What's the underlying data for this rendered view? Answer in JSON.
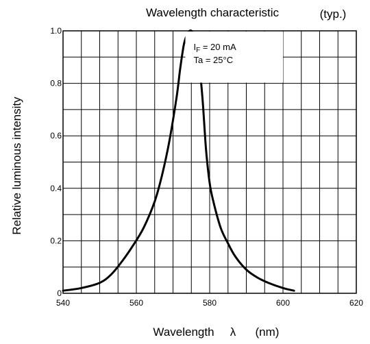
{
  "chart_data": {
    "type": "line",
    "title": "Wavelength characteristic",
    "subtitle": "(typ.)",
    "xlabel": "Wavelength",
    "xlabel_symbol": "λ",
    "xlabel_unit": "(nm)",
    "ylabel": "Relative luminous intensity",
    "xlim": [
      540,
      620
    ],
    "ylim": [
      0,
      1.0
    ],
    "xticks": [
      540,
      560,
      580,
      600,
      620
    ],
    "xtick_labels": [
      "540",
      "560",
      "580",
      "600",
      "620"
    ],
    "yticks": [
      0,
      0.2,
      0.4,
      0.6,
      0.8,
      1.0
    ],
    "ytick_labels": [
      "0",
      "0.2",
      "0.4",
      "0.6",
      "0.8",
      "1.0"
    ],
    "grid": true,
    "conditions": {
      "line1_main": "I",
      "line1_sub": "F",
      "line1_rest": " = 20 mA",
      "line2": "Ta = 25°C"
    },
    "series": [
      {
        "x": [
          540,
          545,
          550,
          553,
          556,
          559,
          562,
          565,
          567,
          569,
          571,
          572,
          573,
          574,
          575,
          576,
          577,
          578,
          579,
          580,
          581,
          583,
          585,
          587,
          590,
          593,
          596,
          600,
          603
        ],
        "y": [
          0.01,
          0.02,
          0.04,
          0.07,
          0.12,
          0.18,
          0.25,
          0.35,
          0.45,
          0.58,
          0.75,
          0.86,
          0.95,
          0.99,
          1.0,
          0.97,
          0.89,
          0.75,
          0.55,
          0.42,
          0.35,
          0.25,
          0.19,
          0.14,
          0.09,
          0.06,
          0.04,
          0.02,
          0.01
        ]
      }
    ],
    "colors": {
      "line": "#000000",
      "grid": "#000000",
      "background": "#ffffff"
    }
  }
}
